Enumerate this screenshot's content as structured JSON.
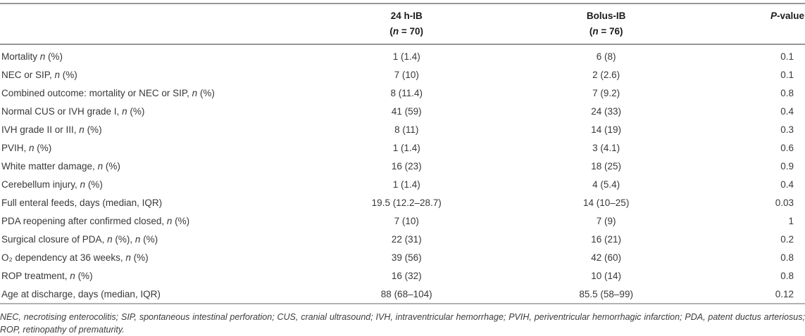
{
  "table": {
    "header": {
      "col_24h": {
        "line1": "24 h-IB",
        "line2": [
          {
            "t": "("
          },
          {
            "t": "n",
            "i": true
          },
          {
            "t": " = 70)"
          }
        ]
      },
      "col_bolus": {
        "line1": "Bolus-IB",
        "line2": [
          {
            "t": "("
          },
          {
            "t": "n",
            "i": true
          },
          {
            "t": " = 76)"
          }
        ]
      },
      "p_value": [
        {
          "t": "P",
          "i": true
        },
        {
          "t": "-value"
        }
      ]
    },
    "rows": [
      {
        "label": [
          {
            "t": "Mortality "
          },
          {
            "t": "n",
            "i": true
          },
          {
            "t": " (%)"
          }
        ],
        "v1": "1 (1.4)",
        "v2": "6 (8)",
        "p": "0.1"
      },
      {
        "label": [
          {
            "t": "NEC or SIP, "
          },
          {
            "t": "n",
            "i": true
          },
          {
            "t": " (%)"
          }
        ],
        "v1": "7 (10)",
        "v2": "2 (2.6)",
        "p": "0.1"
      },
      {
        "label": [
          {
            "t": "Combined outcome: mortality or NEC or SIP, "
          },
          {
            "t": "n",
            "i": true
          },
          {
            "t": " (%)"
          }
        ],
        "v1": "8 (11.4)",
        "v2": "7 (9.2)",
        "p": "0.8"
      },
      {
        "label": [
          {
            "t": "Normal CUS or IVH grade I, "
          },
          {
            "t": "n",
            "i": true
          },
          {
            "t": " (%)"
          }
        ],
        "v1": "41 (59)",
        "v2": "24 (33)",
        "p": "0.4"
      },
      {
        "label": [
          {
            "t": "IVH grade II or III, "
          },
          {
            "t": "n",
            "i": true
          },
          {
            "t": " (%)"
          }
        ],
        "v1": "8 (11)",
        "v2": "14 (19)",
        "p": "0.3"
      },
      {
        "label": [
          {
            "t": "PVIH, "
          },
          {
            "t": "n",
            "i": true
          },
          {
            "t": " (%)"
          }
        ],
        "v1": "1 (1.4)",
        "v2": "3 (4.1)",
        "p": "0.6"
      },
      {
        "label": [
          {
            "t": "White matter damage, "
          },
          {
            "t": "n",
            "i": true
          },
          {
            "t": " (%)"
          }
        ],
        "v1": "16 (23)",
        "v2": "18 (25)",
        "p": "0.9"
      },
      {
        "label": [
          {
            "t": "Cerebellum injury, "
          },
          {
            "t": "n",
            "i": true
          },
          {
            "t": " (%)"
          }
        ],
        "v1": "1 (1.4)",
        "v2": "4 (5.4)",
        "p": "0.4"
      },
      {
        "label": [
          {
            "t": "Full enteral feeds, days (median, IQR)"
          }
        ],
        "v1": "19.5 (12.2–28.7)",
        "v2": "14 (10–25)",
        "p": "0.03"
      },
      {
        "label": [
          {
            "t": "PDA reopening after confirmed closed, "
          },
          {
            "t": "n",
            "i": true
          },
          {
            "t": " (%)"
          }
        ],
        "v1": "7 (10)",
        "v2": "7 (9)",
        "p": "1"
      },
      {
        "label": [
          {
            "t": "Surgical closure of PDA, "
          },
          {
            "t": "n",
            "i": true
          },
          {
            "t": " (%), "
          },
          {
            "t": "n",
            "i": true
          },
          {
            "t": " (%)"
          }
        ],
        "v1": "22 (31)",
        "v2": "16 (21)",
        "p": "0.2"
      },
      {
        "label": [
          {
            "t": "O₂ dependency at 36 weeks, "
          },
          {
            "t": "n",
            "i": true
          },
          {
            "t": " (%)"
          }
        ],
        "v1": "39 (56)",
        "v2": "42 (60)",
        "p": "0.8"
      },
      {
        "label": [
          {
            "t": "ROP treatment, "
          },
          {
            "t": "n",
            "i": true
          },
          {
            "t": " (%)"
          }
        ],
        "v1": "16 (32)",
        "v2": "10 (14)",
        "p": "0.8"
      },
      {
        "label": [
          {
            "t": "Age at discharge, days (median, IQR)"
          }
        ],
        "v1": "88 (68–104)",
        "v2": "85.5 (58–99)",
        "p": "0.12"
      }
    ]
  },
  "footnote": "NEC, necrotising enterocolitis; SIP, spontaneous intestinal perforation; CUS, cranial ultrasound; IVH, intraventricular hemorrhage; PVIH, periventricular hemorrhagic infarction; PDA, patent ductus arteriosus; ROP, retinopathy of prematurity."
}
